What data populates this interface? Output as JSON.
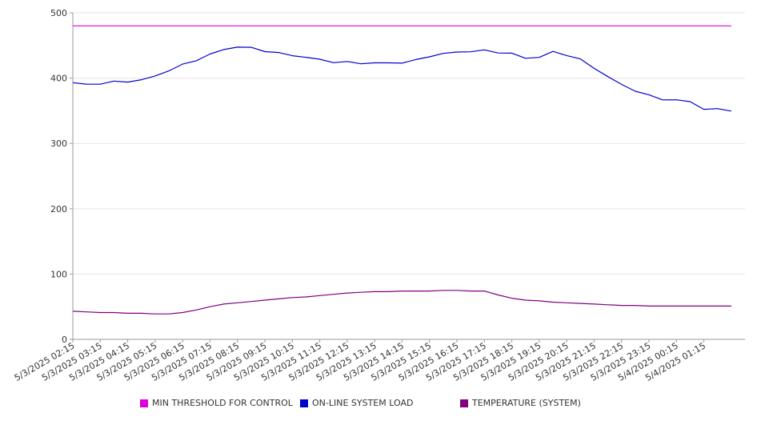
{
  "chart_data": {
    "type": "line",
    "ylim": [
      0,
      500
    ],
    "yticks": [
      0,
      100,
      200,
      300,
      400,
      500
    ],
    "grid": "horizontal",
    "legend_position": "bottom",
    "xticks": [
      "5/3/2025 02:15",
      "5/3/2025 03:15",
      "5/3/2025 04:15",
      "5/3/2025 05:15",
      "5/3/2025 06:15",
      "5/3/2025 07:15",
      "5/3/2025 08:15",
      "5/3/2025 09:15",
      "5/3/2025 10:15",
      "5/3/2025 11:15",
      "5/3/2025 12:15",
      "5/3/2025 13:15",
      "5/3/2025 14:15",
      "5/3/2025 15:15",
      "5/3/2025 16:15",
      "5/3/2025 17:15",
      "5/3/2025 18:15",
      "5/3/2025 19:15",
      "5/3/2025 20:15",
      "5/3/2025 21:15",
      "5/3/2025 22:15",
      "5/3/2025 23:15",
      "5/4/2025 00:15",
      "5/4/2025 01:15"
    ],
    "x_hours": [
      0,
      0.5,
      1,
      1.5,
      2,
      2.5,
      3,
      3.5,
      4,
      4.5,
      5,
      5.5,
      6,
      6.5,
      7,
      7.5,
      8,
      8.5,
      9,
      9.5,
      10,
      10.5,
      11,
      11.5,
      12,
      12.5,
      13,
      13.5,
      14,
      14.5,
      15,
      15.5,
      16,
      16.5,
      17,
      17.5,
      18,
      18.5,
      19,
      19.5,
      20,
      20.5,
      21,
      21.5,
      22,
      22.5,
      23,
      23.5,
      24
    ],
    "series": [
      {
        "name": "MIN THRESHOLD FOR CONTROL",
        "color": "#dd00dd",
        "values": [
          480,
          480,
          480,
          480,
          480,
          480,
          480,
          480,
          480,
          480,
          480,
          480,
          480,
          480,
          480,
          480,
          480,
          480,
          480,
          480,
          480,
          480,
          480,
          480,
          480,
          480,
          480,
          480,
          480,
          480,
          480,
          480,
          480,
          480,
          480,
          480,
          480,
          480,
          480,
          480,
          480,
          480,
          480,
          480,
          480,
          480,
          480,
          480,
          480
        ]
      },
      {
        "name": "ON-LINE SYSTEM LOAD",
        "color": "#0000cc",
        "values": [
          393,
          390,
          392,
          394,
          395,
          397,
          403,
          412,
          420,
          428,
          436,
          444,
          448,
          446,
          442,
          438,
          435,
          432,
          428,
          425,
          424,
          423,
          423,
          423,
          424,
          427,
          434,
          437,
          440,
          441,
          442,
          440,
          437,
          431,
          432,
          440,
          436,
          428,
          416,
          402,
          390,
          381,
          373,
          368,
          366,
          364,
          353,
          352,
          351
        ]
      },
      {
        "name": "TEMPERATURE (SYSTEM)",
        "color": "#800080",
        "values": [
          43,
          42,
          41,
          41,
          40,
          40,
          39,
          39,
          41,
          45,
          50,
          54,
          56,
          58,
          60,
          62,
          64,
          65,
          67,
          69,
          71,
          72,
          73,
          73,
          74,
          74,
          74,
          75,
          75,
          74,
          74,
          68,
          63,
          60,
          59,
          57,
          56,
          55,
          54,
          53,
          52,
          52,
          51,
          51,
          51,
          51,
          51,
          51,
          51
        ]
      }
    ]
  }
}
